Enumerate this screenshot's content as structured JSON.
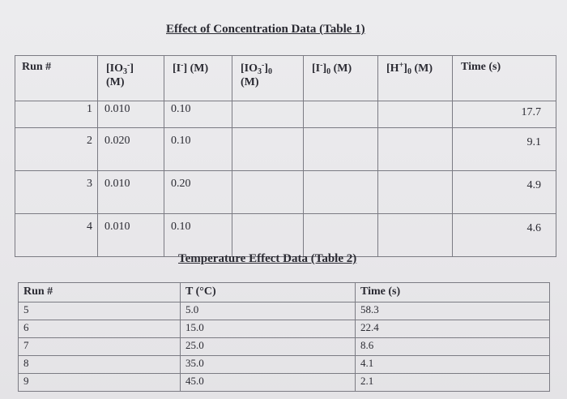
{
  "table1": {
    "title": "Effect of Concentration Data (Table 1)",
    "headers": {
      "run": "Run #",
      "io3": "[IO",
      "io3_sub": "3",
      "io3_sup": "-",
      "io3_tail": "]",
      "io3_unit": "(M)",
      "i": "[I",
      "i_sup": "-",
      "i_tail": "] (M)",
      "io3_0": "[IO",
      "io3_0_sub": "3",
      "io3_0_sup": "-",
      "io3_0_tail": "]",
      "io3_0_sub2": "0",
      "io3_0_unit": "(M)",
      "i0": "[I",
      "i0_sup": "-",
      "i0_tail": "]",
      "i0_sub": "0",
      "i0_unit": " (M)",
      "h0": "[H",
      "h0_sup": "+",
      "h0_tail": "]",
      "h0_sub": "0",
      "h0_unit": " (M)",
      "time": "Time (s)"
    },
    "rows": [
      {
        "run": "1",
        "io3": "0.010",
        "i": "0.10",
        "time": "17.7"
      },
      {
        "run": "2",
        "io3": "0.020",
        "i": "0.10",
        "time": "9.1"
      },
      {
        "run": "3",
        "io3": "0.010",
        "i": "0.20",
        "time": "4.9"
      },
      {
        "run": "4",
        "io3": "0.010",
        "i": "0.10",
        "time": "4.6"
      }
    ]
  },
  "table2": {
    "title": "Temperature Effect Data (Table 2)",
    "headers": {
      "run": "Run #",
      "temp": "T (°C)",
      "time": "Time (s)"
    },
    "rows": [
      {
        "run": "5",
        "temp": "5.0",
        "time": "58.3"
      },
      {
        "run": "6",
        "temp": "15.0",
        "time": "22.4"
      },
      {
        "run": "7",
        "temp": "25.0",
        "time": "8.6"
      },
      {
        "run": "8",
        "temp": "35.0",
        "time": "4.1"
      },
      {
        "run": "9",
        "temp": "45.0",
        "time": "2.1"
      }
    ]
  }
}
